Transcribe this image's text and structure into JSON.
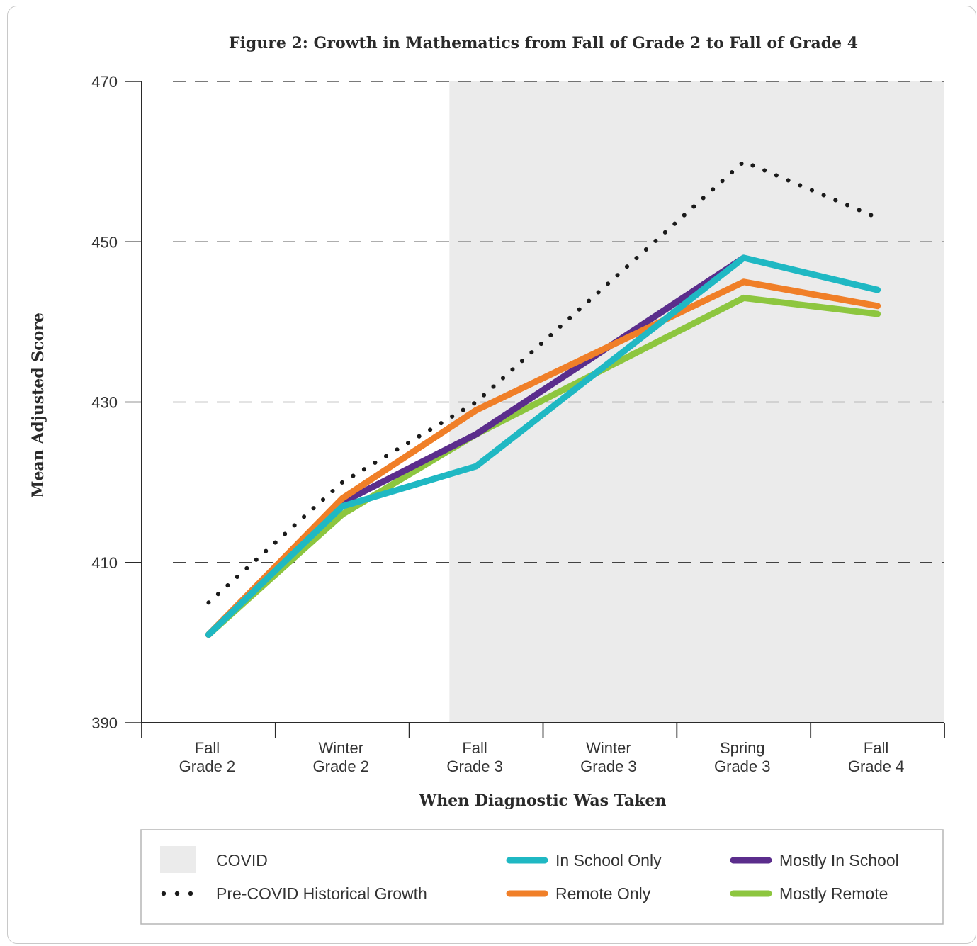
{
  "chart_data": {
    "type": "line",
    "title": "Figure 2: Growth in Mathematics from Fall of Grade 2 to Fall of Grade 4",
    "xlabel": "When Diagnostic Was Taken",
    "ylabel": "Mean Adjusted Score",
    "ylim": [
      390,
      470
    ],
    "yticks": [
      "470",
      "450",
      "430",
      "410",
      "390"
    ],
    "ytick_values": [
      470,
      450,
      430,
      410,
      390
    ],
    "categories": [
      [
        "Fall",
        "Grade 2"
      ],
      [
        "Winter",
        "Grade 2"
      ],
      [
        "Fall",
        "Grade 3"
      ],
      [
        "Winter",
        "Grade 3"
      ],
      [
        "Spring",
        "Grade 3"
      ],
      [
        "Fall",
        "Grade 4"
      ]
    ],
    "grid": "horizontal dashed",
    "shaded_region": {
      "label": "COVID",
      "from_category_index": 1.8,
      "to_category_index": 5.5,
      "color": "#ebebeb"
    },
    "series": [
      {
        "name": "Pre-COVID Historical Growth",
        "style": "dotted",
        "color": "#1a1a1a",
        "values": [
          405,
          420,
          430,
          null,
          460,
          453
        ]
      },
      {
        "name": "In School Only",
        "style": "solid",
        "color": "#1fb8c3",
        "values": [
          401,
          417,
          422,
          null,
          448,
          444
        ]
      },
      {
        "name": "Mostly In School",
        "style": "solid",
        "color": "#5b2d8c",
        "values": [
          401,
          417.5,
          426,
          null,
          448,
          null
        ]
      },
      {
        "name": "Remote Only",
        "style": "solid",
        "color": "#f07f28",
        "values": [
          401,
          418,
          429,
          null,
          445,
          442
        ]
      },
      {
        "name": "Mostly Remote",
        "style": "solid",
        "color": "#8dc63f",
        "values": [
          401,
          416,
          426,
          null,
          443,
          441
        ]
      }
    ],
    "legend": {
      "placement": "bottom",
      "items": [
        {
          "label": "COVID",
          "kind": "swatch",
          "color": "#ebebeb"
        },
        {
          "label": "Pre-COVID Historical Growth",
          "kind": "dots",
          "color": "#1a1a1a"
        },
        {
          "label": "In School Only",
          "kind": "line",
          "color": "#1fb8c3"
        },
        {
          "label": "Remote Only",
          "kind": "line",
          "color": "#f07f28"
        },
        {
          "label": "Mostly In School",
          "kind": "line",
          "color": "#5b2d8c"
        },
        {
          "label": "Mostly Remote",
          "kind": "line",
          "color": "#8dc63f"
        }
      ]
    }
  }
}
